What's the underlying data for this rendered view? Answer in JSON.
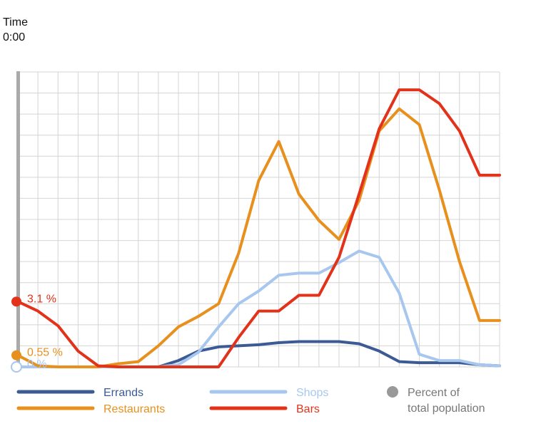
{
  "time_title": "Time",
  "time_value": "0:00",
  "chart_data": {
    "type": "line",
    "x": [
      0,
      1,
      2,
      3,
      4,
      5,
      6,
      7,
      8,
      9,
      10,
      11,
      12,
      13,
      14,
      15,
      16,
      17,
      18,
      19,
      20,
      21,
      22,
      23,
      24
    ],
    "ylim": [
      0,
      14
    ],
    "grid": true,
    "legend_position": "bottom",
    "series": [
      {
        "name": "Errands",
        "color": "#3c5b94",
        "values": [
          0,
          0,
          0,
          0,
          0,
          0,
          0,
          0,
          0.3,
          0.75,
          0.95,
          1.0,
          1.05,
          1.15,
          1.2,
          1.2,
          1.2,
          1.1,
          0.75,
          0.25,
          0.2,
          0.2,
          0.2,
          0.1,
          0.05
        ]
      },
      {
        "name": "Shops",
        "color": "#a8c7ef",
        "values": [
          0,
          0,
          0,
          0,
          0,
          0,
          0,
          0,
          0.1,
          0.7,
          1.9,
          3.0,
          3.6,
          4.35,
          4.45,
          4.45,
          4.95,
          5.5,
          5.2,
          3.5,
          0.6,
          0.3,
          0.3,
          0.1,
          0.05
        ]
      },
      {
        "name": "Restaurants",
        "color": "#e8901e",
        "values": [
          0.55,
          0.05,
          0,
          0,
          0,
          0.15,
          0.25,
          1.0,
          1.9,
          2.4,
          3.0,
          5.4,
          8.85,
          10.7,
          8.2,
          6.95,
          6.05,
          7.9,
          11.2,
          12.25,
          11.5,
          8.4,
          5.0,
          2.2,
          2.2
        ]
      },
      {
        "name": "Bars",
        "color": "#e2321a",
        "values": [
          3.1,
          2.65,
          1.95,
          0.75,
          0.05,
          0,
          0,
          0,
          0,
          0,
          0,
          1.4,
          2.65,
          2.65,
          3.4,
          3.4,
          5.2,
          8.2,
          11.3,
          13.15,
          13.15,
          12.5,
          11.2,
          9.1,
          9.1
        ]
      }
    ],
    "start_labels": [
      {
        "series": "Bars",
        "text": "3.1 %"
      },
      {
        "series": "Restaurants",
        "text": "0.55 %"
      },
      {
        "series": "Shops",
        "text": "0 %"
      }
    ]
  },
  "legend": {
    "items": [
      {
        "label": "Errands",
        "color": "#3c5b94"
      },
      {
        "label": "Shops",
        "color": "#a8c7ef"
      },
      {
        "label": "Restaurants",
        "color": "#e8901e"
      },
      {
        "label": "Bars",
        "color": "#e2321a"
      }
    ],
    "dot_label_line1": "Percent of",
    "dot_label_line2": "total population",
    "dot_color": "#999999"
  }
}
